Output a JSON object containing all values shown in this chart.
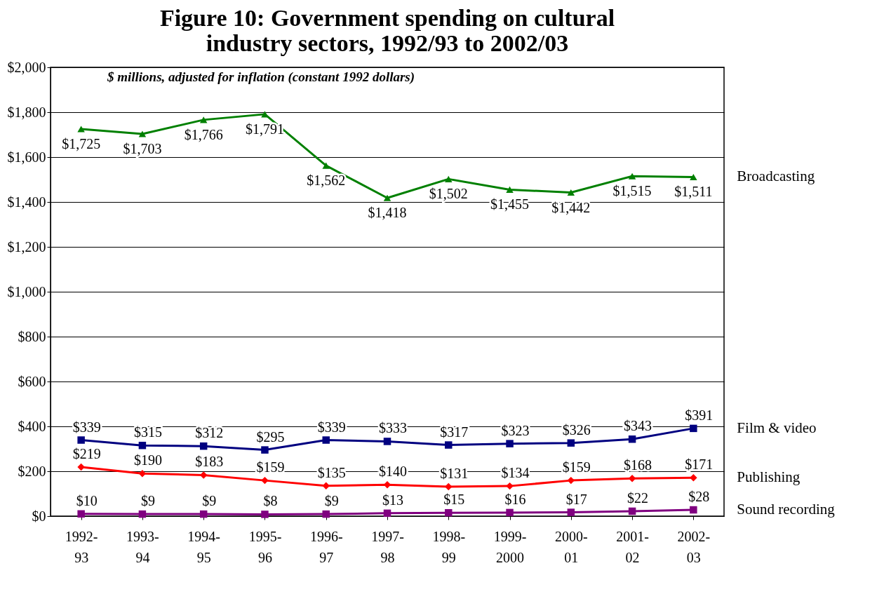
{
  "chart_data": {
    "type": "line",
    "title": "Figure 10: Government spending on cultural industry sectors, 1992/93 to 2002/03",
    "subtitle": "$ millions, adjusted for inflation (constant 1992 dollars)",
    "categories": [
      "1992-93",
      "1993-94",
      "1994-95",
      "1995-96",
      "1996-97",
      "1997-98",
      "1998-99",
      "1999-2000",
      "2000-01",
      "2001-02",
      "2002-03"
    ],
    "series": [
      {
        "name": "Broadcasting",
        "color": "#008000",
        "marker": "triangle",
        "values": [
          1725,
          1703,
          1766,
          1791,
          1562,
          1418,
          1502,
          1455,
          1442,
          1515,
          1511
        ],
        "value_labels": [
          "$1,725",
          "$1,703",
          "$1,766",
          "$1,791",
          "$1,562",
          "$1,418",
          "$1,502",
          "$1,455",
          "$1,442",
          "$1,515",
          "$1,511"
        ]
      },
      {
        "name": "Film & video",
        "color": "#000080",
        "marker": "square",
        "values": [
          339,
          315,
          312,
          295,
          339,
          333,
          317,
          323,
          326,
          343,
          391
        ],
        "value_labels": [
          "$339",
          "$315",
          "$312",
          "$295",
          "$339",
          "$333",
          "$317",
          "$323",
          "$326",
          "$343",
          "$391"
        ]
      },
      {
        "name": "Publishing",
        "color": "#ff0000",
        "marker": "diamond",
        "values": [
          219,
          190,
          183,
          159,
          135,
          140,
          131,
          134,
          159,
          168,
          171
        ],
        "value_labels": [
          "$219",
          "$190",
          "$183",
          "$159",
          "$135",
          "$140",
          "$131",
          "$134",
          "$159",
          "$168",
          "$171"
        ]
      },
      {
        "name": "Sound recording",
        "color": "#800080",
        "marker": "square",
        "values": [
          10,
          9,
          9,
          8,
          9,
          13,
          15,
          16,
          17,
          22,
          28
        ],
        "value_labels": [
          "$10",
          "$9",
          "$9",
          "$8",
          "$9",
          "$13",
          "$15",
          "$16",
          "$17",
          "$22",
          "$28"
        ]
      }
    ],
    "ylim": [
      0,
      2000
    ],
    "yticks": [
      {
        "value": 0,
        "label": "$0"
      },
      {
        "value": 200,
        "label": "$200"
      },
      {
        "value": 400,
        "label": "$400"
      },
      {
        "value": 600,
        "label": "$600"
      },
      {
        "value": 800,
        "label": "$800"
      },
      {
        "value": 1000,
        "label": "$1,000"
      },
      {
        "value": 1200,
        "label": "$1,200"
      },
      {
        "value": 1400,
        "label": "$1,400"
      },
      {
        "value": 1600,
        "label": "$1,600"
      },
      {
        "value": 1800,
        "label": "$1,800"
      },
      {
        "value": 2000,
        "label": "$2,000"
      }
    ],
    "grid": "y",
    "legend": false,
    "line_style": "solid"
  }
}
